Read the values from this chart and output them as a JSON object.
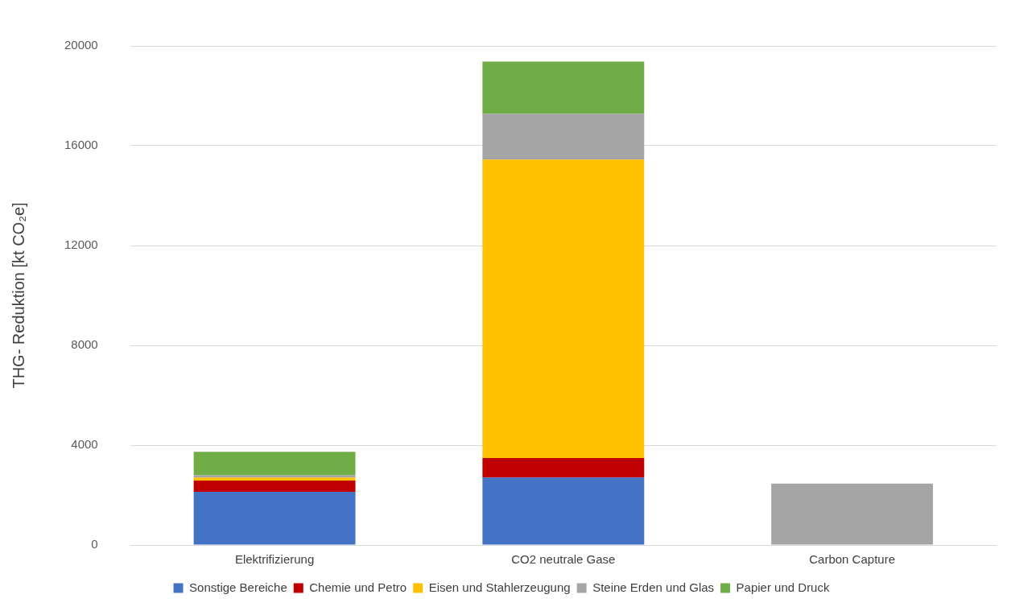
{
  "chart_data": {
    "type": "bar",
    "stacked": true,
    "ylabel": "THG- Reduktion [kt CO₂e]",
    "categories": [
      "Elektrifizierung",
      "CO2 neutrale Gase",
      "Carbon Capture"
    ],
    "series": [
      {
        "name": "Sonstige Bereiche",
        "color": "#4472c4",
        "values": [
          2130,
          2700,
          null
        ]
      },
      {
        "name": "Chemie und Petro",
        "color": "#c00000",
        "values": [
          450,
          780,
          null
        ]
      },
      {
        "name": "Eisen und Stahlerzeugung",
        "color": "#ffc000",
        "values": [
          120,
          11960,
          null
        ]
      },
      {
        "name": "Steine Erden und Glas",
        "color": "#a5a5a5",
        "values": [
          100,
          1840,
          2460
        ]
      },
      {
        "name": "Papier und Druck",
        "color": "#70ad47",
        "values": [
          930,
          2090,
          null
        ]
      }
    ],
    "ylim": [
      0,
      20000
    ],
    "yticks": [
      0,
      4000,
      8000,
      12000,
      16000,
      20000
    ],
    "grid": "y",
    "legend": "bottom"
  }
}
